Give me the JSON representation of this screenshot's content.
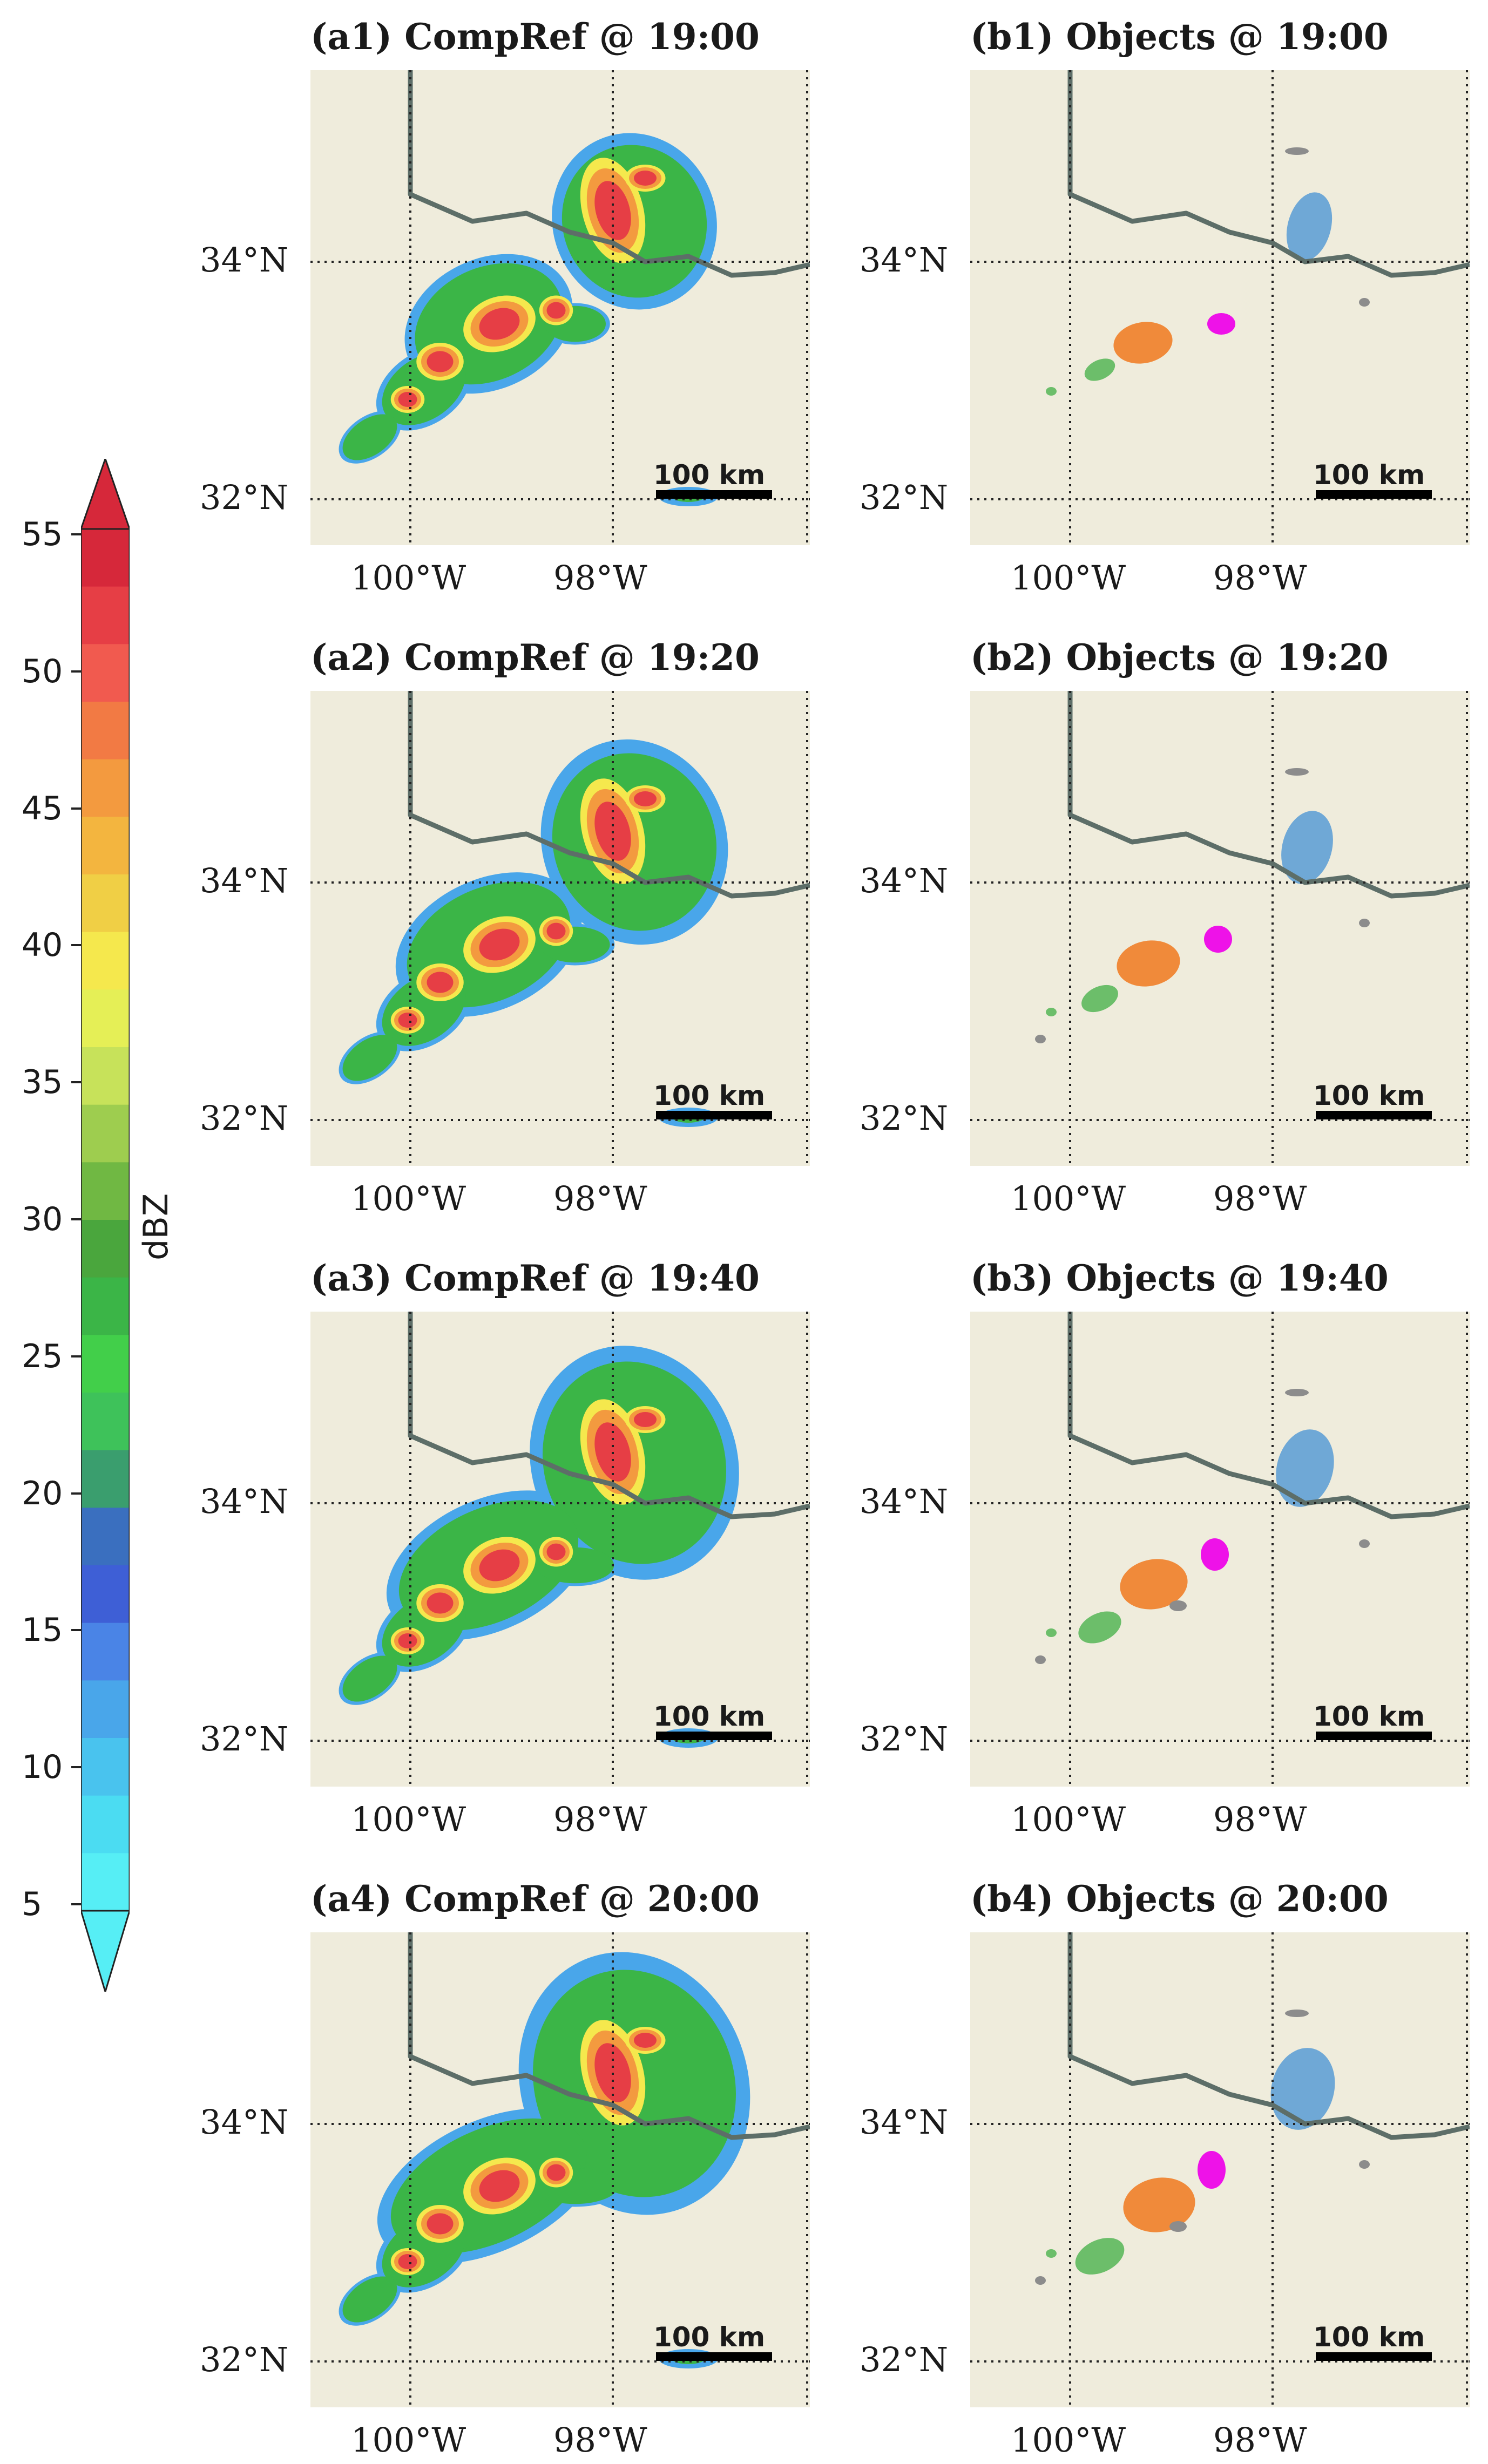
{
  "colorbar": {
    "label": "dBZ",
    "ticks": [
      "55",
      "50",
      "45",
      "40",
      "35",
      "30",
      "25",
      "20",
      "15",
      "10",
      "5"
    ],
    "colors": [
      "#d6283a",
      "#e63e45",
      "#f15a4f",
      "#f27a44",
      "#f39a3f",
      "#f3b53f",
      "#f0cf45",
      "#f5e84d",
      "#e5ef56",
      "#c7e25a",
      "#9ecd4f",
      "#70b843",
      "#4aa63d",
      "#3bb547",
      "#42cf4a",
      "#3ec25a",
      "#3a9e6e",
      "#3a6fbf",
      "#3e5fd6",
      "#4a84e6",
      "#49a6ea",
      "#49c3ee",
      "#4bdcf2",
      "#56eef5"
    ]
  },
  "panels": [
    {
      "id": "a1",
      "title": "(a1) CompRef @ 19:00",
      "kind": "compref"
    },
    {
      "id": "b1",
      "title": "(b1) Objects @ 19:00",
      "kind": "objects"
    },
    {
      "id": "a2",
      "title": "(a2) CompRef @ 19:20",
      "kind": "compref"
    },
    {
      "id": "b2",
      "title": "(b2) Objects @ 19:20",
      "kind": "objects"
    },
    {
      "id": "a3",
      "title": "(a3) CompRef @ 19:40",
      "kind": "compref"
    },
    {
      "id": "b3",
      "title": "(b3) Objects @ 19:40",
      "kind": "objects"
    },
    {
      "id": "a4",
      "title": "(a4) CompRef @ 20:00",
      "kind": "compref"
    },
    {
      "id": "b4",
      "title": "(b4) Objects @ 20:00",
      "kind": "objects"
    }
  ],
  "map_labels": {
    "lat_top": "34°N",
    "lat_bottom": "32°N",
    "lon_left": "100°W",
    "lon_right": "98°W",
    "scale_bar": "100 km"
  },
  "object_colors": {
    "object1": "#6fa8d6",
    "object2": "#f08a3a",
    "object3": "#ee12e8",
    "object4": "#6cbe6a",
    "other": "#8c8c8c"
  },
  "map_colors": {
    "land": "#efecdc",
    "border": "#5d6e68"
  }
}
